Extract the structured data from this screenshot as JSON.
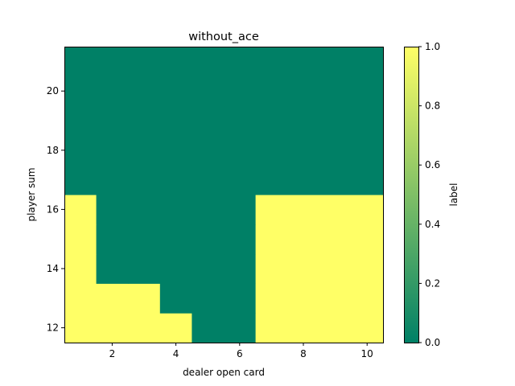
{
  "chart_data": {
    "type": "heatmap",
    "title": "without_ace",
    "xlabel": "dealer open card",
    "ylabel": "player sum",
    "x": [
      1,
      2,
      3,
      4,
      5,
      6,
      7,
      8,
      9,
      10
    ],
    "y": [
      12,
      13,
      14,
      15,
      16,
      17,
      18,
      19,
      20,
      21
    ],
    "xlim": [
      0.5,
      10.5
    ],
    "ylim": [
      11.5,
      21.5
    ],
    "xticks": [
      2,
      4,
      6,
      8,
      10
    ],
    "yticks": [
      12,
      14,
      16,
      18,
      20
    ],
    "values": [
      [
        1,
        1,
        1,
        1,
        0,
        0,
        1,
        1,
        1,
        1
      ],
      [
        1,
        1,
        1,
        0,
        0,
        0,
        1,
        1,
        1,
        1
      ],
      [
        1,
        0,
        0,
        0,
        0,
        0,
        1,
        1,
        1,
        1
      ],
      [
        1,
        0,
        0,
        0,
        0,
        0,
        1,
        1,
        1,
        1
      ],
      [
        1,
        0,
        0,
        0,
        0,
        0,
        1,
        1,
        1,
        1
      ],
      [
        0,
        0,
        0,
        0,
        0,
        0,
        0,
        0,
        0,
        0
      ],
      [
        0,
        0,
        0,
        0,
        0,
        0,
        0,
        0,
        0,
        0
      ],
      [
        0,
        0,
        0,
        0,
        0,
        0,
        0,
        0,
        0,
        0
      ],
      [
        0,
        0,
        0,
        0,
        0,
        0,
        0,
        0,
        0,
        0
      ],
      [
        0,
        0,
        0,
        0,
        0,
        0,
        0,
        0,
        0,
        0
      ]
    ],
    "colorbar": {
      "label": "label",
      "range": [
        0.0,
        1.0
      ],
      "ticks": [
        "0.0",
        "0.2",
        "0.4",
        "0.6",
        "0.8",
        "1.0"
      ],
      "colormap": "summer",
      "color_low": "#008066",
      "color_high": "#ffff66"
    },
    "grid": false
  }
}
